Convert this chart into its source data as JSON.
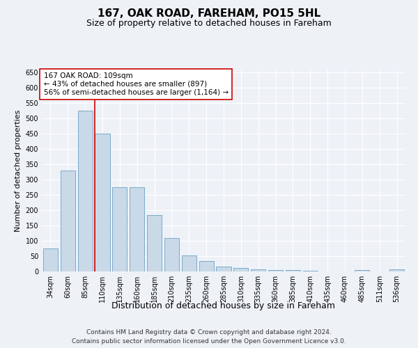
{
  "title": "167, OAK ROAD, FAREHAM, PO15 5HL",
  "subtitle": "Size of property relative to detached houses in Fareham",
  "xlabel": "Distribution of detached houses by size in Fareham",
  "ylabel": "Number of detached properties",
  "categories": [
    "34sqm",
    "60sqm",
    "85sqm",
    "110sqm",
    "135sqm",
    "160sqm",
    "185sqm",
    "210sqm",
    "235sqm",
    "260sqm",
    "285sqm",
    "310sqm",
    "335sqm",
    "360sqm",
    "385sqm",
    "410sqm",
    "435sqm",
    "460sqm",
    "485sqm",
    "511sqm",
    "536sqm"
  ],
  "values": [
    75,
    330,
    525,
    450,
    275,
    275,
    185,
    110,
    52,
    35,
    17,
    12,
    7,
    5,
    5,
    3,
    1,
    0,
    5,
    0,
    7
  ],
  "bar_color": "#c9d9e8",
  "bar_edge_color": "#7aaaca",
  "property_line_index": 3,
  "property_line_color": "#cc0000",
  "annotation_line1": "167 OAK ROAD: 109sqm",
  "annotation_line2": "← 43% of detached houses are smaller (897)",
  "annotation_line3": "56% of semi-detached houses are larger (1,164) →",
  "annotation_box_facecolor": "#ffffff",
  "annotation_box_edgecolor": "#cc0000",
  "ylim": [
    0,
    660
  ],
  "yticks": [
    0,
    50,
    100,
    150,
    200,
    250,
    300,
    350,
    400,
    450,
    500,
    550,
    600,
    650
  ],
  "footnote1": "Contains HM Land Registry data © Crown copyright and database right 2024.",
  "footnote2": "Contains public sector information licensed under the Open Government Licence v3.0.",
  "background_color": "#eef2f7",
  "title_fontsize": 11,
  "subtitle_fontsize": 9,
  "xlabel_fontsize": 9,
  "ylabel_fontsize": 8,
  "annot_fontsize": 7.5,
  "footnote_fontsize": 6.5,
  "tick_fontsize": 7
}
